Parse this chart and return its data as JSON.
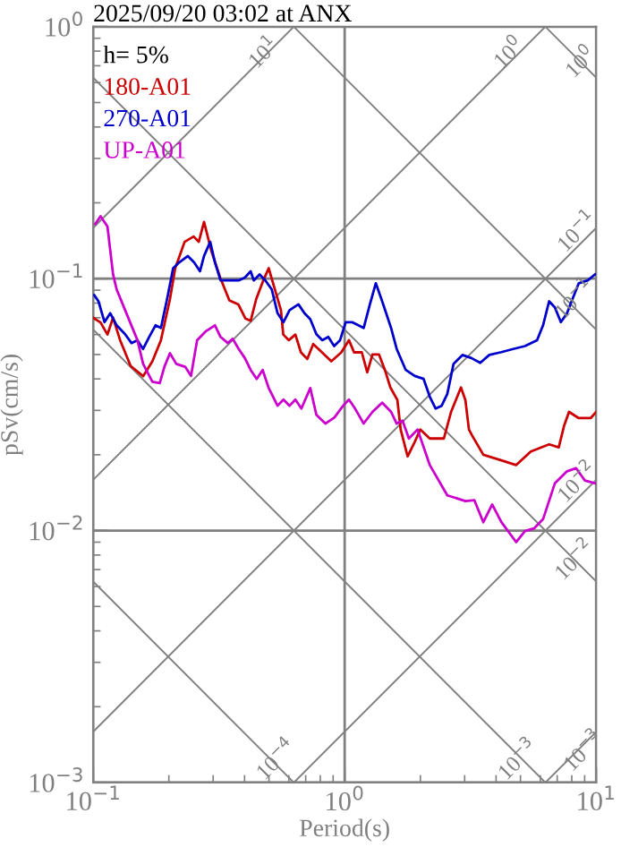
{
  "chart_data": {
    "type": "line",
    "title": "2025/09/20 03:02 at ANX",
    "xlabel": "Period(s)",
    "ylabel": "pSv(cm/s)",
    "log": "xy",
    "xlim": [
      0.1,
      10
    ],
    "ylim": [
      0.001,
      1
    ],
    "xticks": [
      {
        "value": 0.1,
        "label": "10$^{−1}$"
      },
      {
        "value": 1,
        "label": "10$^{0}$"
      },
      {
        "value": 10,
        "label": "10$^{1}$"
      }
    ],
    "yticks": [
      {
        "value": 0.001,
        "label": "10$^{−3}$"
      },
      {
        "value": 0.01,
        "label": "10$^{−2}$"
      },
      {
        "value": 0.1,
        "label": "10$^{−1}$"
      },
      {
        "value": 1,
        "label": "10$^{0}$"
      }
    ],
    "grid": true,
    "legend": "top left",
    "annotations": [
      "h= 5%",
      {
        "text": "10$^{1}$",
        "x": 0.482,
        "y": 0.78
      },
      {
        "text": "10$^{0}$",
        "x": 4.55,
        "y": 0.78
      },
      {
        "text": "10$^{0}$",
        "x": 8.77,
        "y": 0.716
      },
      {
        "text": "10$^{−1}$",
        "x": 8.5,
        "y": 0.152
      },
      {
        "text": "10$^{−1}$",
        "x": 8.3,
        "y": 0.082
      },
      {
        "text": "10$^{−2}$",
        "x": 8.5,
        "y": 0.0154
      },
      {
        "text": "10$^{−2}$",
        "x": 8.3,
        "y": 0.00757
      },
      {
        "text": "10$^{−4}$",
        "x": 0.54,
        "y": 0.00122
      },
      {
        "text": "10$^{−3}$",
        "x": 4.94,
        "y": 0.00122
      },
      {
        "text": "10$^{−3}$",
        "x": 9.0,
        "y": 0.00132
      }
    ],
    "series": [
      {
        "color": "#808080",
        "x": [
          0.1,
          0.628
        ],
        "values": [
          0.159,
          1
        ]
      },
      {
        "color": "#808080",
        "x": [
          0.1,
          6.283
        ],
        "values": [
          0.0159,
          1
        ]
      },
      {
        "color": "#808080",
        "x": [
          0.1,
          10
        ],
        "values": [
          0.00159,
          0.159
        ]
      },
      {
        "color": "#808080",
        "x": [
          0.628,
          10
        ],
        "values": [
          0.001,
          0.0159
        ]
      },
      {
        "color": "#808080",
        "x": [
          6.283,
          10
        ],
        "values": [
          0.001,
          0.00159
        ]
      },
      {
        "color": "#808080",
        "x": [
          6.283,
          10
        ],
        "values": [
          1,
          0.628
        ]
      },
      {
        "color": "#808080",
        "x": [
          0.628,
          10
        ],
        "values": [
          1,
          0.0628
        ]
      },
      {
        "color": "#808080",
        "x": [
          0.1,
          10
        ],
        "values": [
          0.628,
          0.00628
        ]
      },
      {
        "color": "#808080",
        "x": [
          0.1,
          6.283
        ],
        "values": [
          0.0628,
          0.001
        ]
      },
      {
        "color": "#808080",
        "x": [
          0.1,
          0.628
        ],
        "values": [
          0.00628,
          0.001
        ]
      },
      {
        "name": "180-A01",
        "color": "#cc0000",
        "x": [
          0.1,
          0.107,
          0.114,
          0.12,
          0.128,
          0.141,
          0.158,
          0.172,
          0.186,
          0.202,
          0.212,
          0.231,
          0.251,
          0.263,
          0.276,
          0.295,
          0.32,
          0.348,
          0.378,
          0.403,
          0.423,
          0.445,
          0.474,
          0.499,
          0.524,
          0.558,
          0.57,
          0.6,
          0.637,
          0.67,
          0.71,
          0.75,
          0.83,
          0.885,
          0.97,
          1.04,
          1.09,
          1.17,
          1.23,
          1.29,
          1.37,
          1.45,
          1.52,
          1.62,
          1.67,
          1.78,
          1.9,
          2.0,
          2.18,
          2.48,
          2.65,
          2.9,
          3.02,
          3.12,
          3.2,
          3.56,
          4.2,
          4.8,
          5.5,
          6.5,
          7.1,
          7.45,
          7.8,
          8.5,
          9.53,
          10
        ],
        "values": [
          0.07,
          0.067,
          0.06,
          0.07,
          0.057,
          0.045,
          0.041,
          0.047,
          0.057,
          0.083,
          0.11,
          0.14,
          0.147,
          0.14,
          0.168,
          0.129,
          0.101,
          0.082,
          0.079,
          0.0695,
          0.068,
          0.083,
          0.098,
          0.11,
          0.093,
          0.075,
          0.06,
          0.057,
          0.06,
          0.051,
          0.048,
          0.055,
          0.05,
          0.047,
          0.051,
          0.057,
          0.051,
          0.051,
          0.0425,
          0.05,
          0.05,
          0.043,
          0.037,
          0.033,
          0.0252,
          0.0197,
          0.0225,
          0.0252,
          0.0232,
          0.0232,
          0.0296,
          0.037,
          0.033,
          0.0252,
          0.024,
          0.02,
          0.019,
          0.0182,
          0.0206,
          0.022,
          0.0214,
          0.026,
          0.0296,
          0.028,
          0.028,
          0.0296
        ]
      },
      {
        "name": "270-A01",
        "color": "#0000cc",
        "x": [
          0.101,
          0.105,
          0.111,
          0.117,
          0.124,
          0.134,
          0.142,
          0.15,
          0.158,
          0.167,
          0.177,
          0.186,
          0.197,
          0.208,
          0.22,
          0.238,
          0.252,
          0.266,
          0.276,
          0.292,
          0.305,
          0.321,
          0.349,
          0.379,
          0.401,
          0.423,
          0.435,
          0.459,
          0.484,
          0.513,
          0.541,
          0.571,
          0.604,
          0.655,
          0.692,
          0.73,
          0.772,
          0.815,
          0.861,
          0.908,
          0.959,
          1.01,
          1.07,
          1.19,
          1.26,
          1.33,
          1.41,
          1.53,
          1.61,
          1.75,
          1.9,
          2.06,
          2.18,
          2.3,
          2.43,
          2.56,
          2.71,
          2.94,
          3.19,
          3.46,
          3.76,
          4.2,
          4.68,
          5.21,
          5.82,
          6.15,
          6.5,
          6.85,
          7.24,
          7.66,
          8.07,
          8.53,
          9.26,
          9.9
        ],
        "values": [
          0.086,
          0.0813,
          0.0672,
          0.0729,
          0.0653,
          0.0602,
          0.0555,
          0.057,
          0.0526,
          0.0587,
          0.0653,
          0.0637,
          0.0835,
          0.11,
          0.116,
          0.123,
          0.116,
          0.107,
          0.123,
          0.14,
          0.116,
          0.0984,
          0.0984,
          0.0984,
          0.101,
          0.107,
          0.0984,
          0.104,
          0.0984,
          0.0906,
          0.0729,
          0.0672,
          0.075,
          0.0791,
          0.0729,
          0.069,
          0.0602,
          0.057,
          0.0587,
          0.054,
          0.057,
          0.0672,
          0.0672,
          0.0637,
          0.0791,
          0.0959,
          0.0813,
          0.0637,
          0.0526,
          0.0434,
          0.0411,
          0.04,
          0.034,
          0.0305,
          0.0313,
          0.0349,
          0.0459,
          0.0498,
          0.0484,
          0.0463,
          0.0498,
          0.0511,
          0.0526,
          0.054,
          0.057,
          0.0653,
          0.0813,
          0.0769,
          0.0672,
          0.0729,
          0.0835,
          0.0959,
          0.0984,
          0.104
        ]
      },
      {
        "name": "UP-A01",
        "color": "#cc00cc",
        "x": [
          0.102,
          0.107,
          0.114,
          0.12,
          0.124,
          0.134,
          0.15,
          0.158,
          0.172,
          0.184,
          0.192,
          0.202,
          0.214,
          0.232,
          0.245,
          0.259,
          0.281,
          0.305,
          0.321,
          0.343,
          0.359,
          0.379,
          0.401,
          0.423,
          0.447,
          0.472,
          0.499,
          0.541,
          0.571,
          0.604,
          0.637,
          0.673,
          0.73,
          0.772,
          0.838,
          0.91,
          0.986,
          1.04,
          1.1,
          1.19,
          1.29,
          1.41,
          1.53,
          1.61,
          1.7,
          1.8,
          1.95,
          2.18,
          2.56,
          3.02,
          3.28,
          3.56,
          3.86,
          4.2,
          4.81,
          5.21,
          5.66,
          6.15,
          6.85,
          7.66,
          8.32,
          9.02,
          9.9
        ],
        "values": [
          0.165,
          0.177,
          0.161,
          0.104,
          0.0906,
          0.075,
          0.057,
          0.0459,
          0.039,
          0.0385,
          0.0447,
          0.0506,
          0.0459,
          0.0447,
          0.0411,
          0.057,
          0.0619,
          0.0653,
          0.0587,
          0.0555,
          0.0577,
          0.0526,
          0.0484,
          0.0434,
          0.04,
          0.0434,
          0.0368,
          0.0313,
          0.0331,
          0.0313,
          0.0331,
          0.0305,
          0.0368,
          0.0288,
          0.0266,
          0.0281,
          0.0313,
          0.0331,
          0.0305,
          0.0266,
          0.0296,
          0.0322,
          0.0296,
          0.0266,
          0.0273,
          0.0232,
          0.0252,
          0.0182,
          0.0138,
          0.0131,
          0.0132,
          0.0108,
          0.0127,
          0.0108,
          0.009,
          0.00995,
          0.0102,
          0.0111,
          0.0154,
          0.0172,
          0.0177,
          0.0158,
          0.0154
        ]
      }
    ]
  }
}
